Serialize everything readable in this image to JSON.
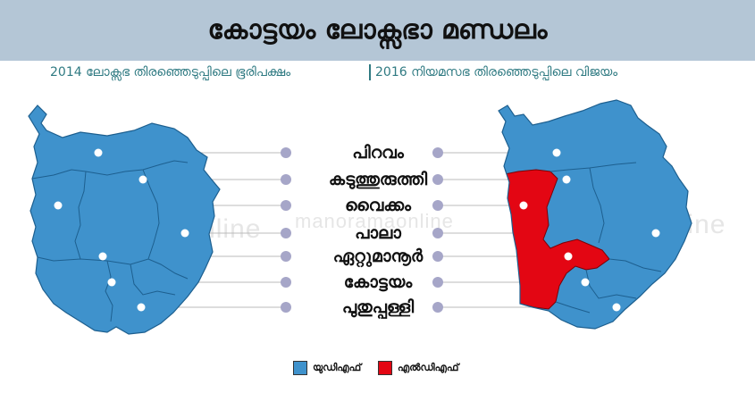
{
  "header": {
    "title": "കോട്ടയം ലോക്സഭാ മണ്ഡലം",
    "subtitle_left": "2014 ലോക്സഭ തിരഞ്ഞെടുപ്പിലെ ഭൂരിപക്ഷം",
    "subtitle_right": "2016 നിയമസഭ തിരഞ്ഞെടുപ്പിലെ വിജയം"
  },
  "constituencies": [
    {
      "name": "പിറവം",
      "result_2014": "UDF",
      "result_2016": "UDF"
    },
    {
      "name": "കടുത്തുരുത്തി",
      "result_2014": "UDF",
      "result_2016": "UDF"
    },
    {
      "name": "വൈക്കം",
      "result_2014": "UDF",
      "result_2016": "LDF"
    },
    {
      "name": "പാലാ",
      "result_2014": "UDF",
      "result_2016": "UDF"
    },
    {
      "name": "ഏറ്റുമാനൂർ",
      "result_2014": "UDF",
      "result_2016": "LDF"
    },
    {
      "name": "കോട്ടയം",
      "result_2014": "UDF",
      "result_2016": "UDF"
    },
    {
      "name": "പുതുപ്പള്ളി",
      "result_2014": "UDF",
      "result_2016": "UDF"
    }
  ],
  "legend": [
    {
      "label": "യുഡിഎഫ്",
      "color": "#3f92cc"
    },
    {
      "label": "എൽഡിഎഫ്",
      "color": "#e30613"
    }
  ],
  "watermark": "manoramaonline",
  "colors": {
    "udf": "#3f92cc",
    "ldf": "#e30613",
    "border": "#1d5f8f",
    "header_bg": "#b4c6d6",
    "subtitle": "#2f7a82"
  }
}
